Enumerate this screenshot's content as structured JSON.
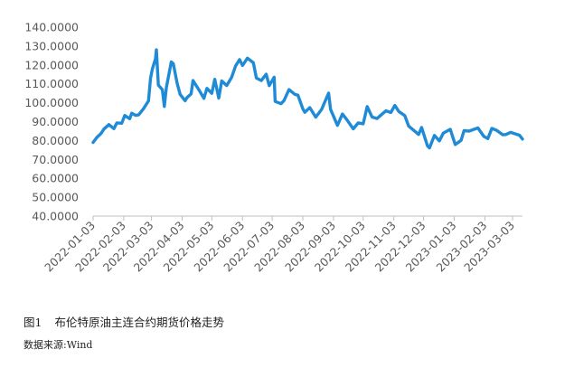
{
  "chart_data": {
    "type": "line",
    "series": [
      {
        "color": "#1f8bd6",
        "points": [
          [
            "2022-01-03",
            78.98
          ],
          [
            "2022-01-07",
            81.75
          ],
          [
            "2022-01-11",
            83.72
          ],
          [
            "2022-01-14",
            86.06
          ],
          [
            "2022-01-19",
            88.44
          ],
          [
            "2022-01-24",
            86.27
          ],
          [
            "2022-01-27",
            89.34
          ],
          [
            "2022-02-01",
            89.16
          ],
          [
            "2022-02-04",
            93.27
          ],
          [
            "2022-02-09",
            91.55
          ],
          [
            "2022-02-11",
            94.44
          ],
          [
            "2022-02-15",
            93.28
          ],
          [
            "2022-02-18",
            93.54
          ],
          [
            "2022-02-23",
            96.84
          ],
          [
            "2022-02-28",
            100.99
          ],
          [
            "2022-03-02",
            112.93
          ],
          [
            "2022-03-04",
            118.11
          ],
          [
            "2022-03-07",
            123.21
          ],
          [
            "2022-03-08",
            127.98
          ],
          [
            "2022-03-10",
            109.33
          ],
          [
            "2022-03-14",
            106.9
          ],
          [
            "2022-03-16",
            98.02
          ],
          [
            "2022-03-18",
            107.93
          ],
          [
            "2022-03-23",
            121.6
          ],
          [
            "2022-03-25",
            120.65
          ],
          [
            "2022-03-29",
            110.23
          ],
          [
            "2022-04-01",
            104.39
          ],
          [
            "2022-04-06",
            101.07
          ],
          [
            "2022-04-08",
            102.78
          ],
          [
            "2022-04-12",
            104.64
          ],
          [
            "2022-04-14",
            111.7
          ],
          [
            "2022-04-20",
            106.8
          ],
          [
            "2022-04-25",
            102.32
          ],
          [
            "2022-04-28",
            107.59
          ],
          [
            "2022-05-03",
            104.97
          ],
          [
            "2022-05-06",
            112.39
          ],
          [
            "2022-05-10",
            102.46
          ],
          [
            "2022-05-13",
            111.55
          ],
          [
            "2022-05-18",
            109.11
          ],
          [
            "2022-05-23",
            113.42
          ],
          [
            "2022-05-27",
            119.43
          ],
          [
            "2022-05-31",
            122.84
          ],
          [
            "2022-06-03",
            119.72
          ],
          [
            "2022-06-08",
            123.58
          ],
          [
            "2022-06-14",
            121.17
          ],
          [
            "2022-06-17",
            113.12
          ],
          [
            "2022-06-22",
            111.74
          ],
          [
            "2022-06-27",
            115.09
          ],
          [
            "2022-06-30",
            109.03
          ],
          [
            "2022-07-05",
            113.5
          ],
          [
            "2022-07-06",
            100.69
          ],
          [
            "2022-07-12",
            99.49
          ],
          [
            "2022-07-15",
            101.16
          ],
          [
            "2022-07-20",
            106.92
          ],
          [
            "2022-07-26",
            104.4
          ],
          [
            "2022-07-29",
            103.97
          ],
          [
            "2022-08-03",
            96.78
          ],
          [
            "2022-08-05",
            94.92
          ],
          [
            "2022-08-10",
            97.4
          ],
          [
            "2022-08-16",
            92.34
          ],
          [
            "2022-08-22",
            96.48
          ],
          [
            "2022-08-29",
            105.09
          ],
          [
            "2022-08-31",
            96.49
          ],
          [
            "2022-09-07",
            88.0
          ],
          [
            "2022-09-12",
            94.0
          ],
          [
            "2022-09-16",
            91.35
          ],
          [
            "2022-09-23",
            86.15
          ],
          [
            "2022-09-28",
            89.32
          ],
          [
            "2022-10-03",
            88.86
          ],
          [
            "2022-10-07",
            97.92
          ],
          [
            "2022-10-12",
            92.45
          ],
          [
            "2022-10-17",
            91.62
          ],
          [
            "2022-10-21",
            93.5
          ],
          [
            "2022-10-26",
            95.69
          ],
          [
            "2022-10-31",
            94.83
          ],
          [
            "2022-11-04",
            98.57
          ],
          [
            "2022-11-08",
            95.36
          ],
          [
            "2022-11-14",
            93.14
          ],
          [
            "2022-11-18",
            87.62
          ],
          [
            "2022-11-23",
            85.41
          ],
          [
            "2022-11-28",
            83.19
          ],
          [
            "2022-12-01",
            86.88
          ],
          [
            "2022-12-07",
            77.17
          ],
          [
            "2022-12-09",
            76.1
          ],
          [
            "2022-12-14",
            82.7
          ],
          [
            "2022-12-19",
            79.8
          ],
          [
            "2022-12-23",
            83.92
          ],
          [
            "2022-12-30",
            85.91
          ],
          [
            "2023-01-04",
            77.84
          ],
          [
            "2023-01-10",
            80.1
          ],
          [
            "2023-01-13",
            85.28
          ],
          [
            "2023-01-18",
            84.98
          ],
          [
            "2023-01-24",
            86.13
          ],
          [
            "2023-01-27",
            86.66
          ],
          [
            "2023-02-02",
            82.17
          ],
          [
            "2023-02-06",
            80.99
          ],
          [
            "2023-02-10",
            86.39
          ],
          [
            "2023-02-15",
            85.38
          ],
          [
            "2023-02-21",
            83.05
          ],
          [
            "2023-02-24",
            83.16
          ],
          [
            "2023-03-01",
            84.31
          ],
          [
            "2023-03-07",
            83.29
          ],
          [
            "2023-03-10",
            82.78
          ],
          [
            "2023-03-13",
            80.77
          ]
        ]
      }
    ],
    "ylim": [
      40,
      140
    ],
    "yticks": [
      "40.0000",
      "50.0000",
      "60.0000",
      "70.0000",
      "80.0000",
      "90.0000",
      "100.0000",
      "110.0000",
      "120.0000",
      "130.0000",
      "140.0000"
    ],
    "xticks": [
      "2022-01-03",
      "2022-02-03",
      "2022-03-03",
      "2022-04-03",
      "2022-05-03",
      "2022-06-03",
      "2022-07-03",
      "2022-08-03",
      "2022-09-03",
      "2022-10-03",
      "2022-11-03",
      "2022-12-03",
      "2023-01-03",
      "2023-02-03",
      "2023-03-03"
    ],
    "xrange": [
      "2022-01-03",
      "2023-03-13"
    ],
    "grid": false,
    "legend": "none"
  },
  "caption": {
    "figure_no": "图1",
    "title": "布伦特原油主连合约期货价格走势"
  },
  "source": "数据来源:Wind"
}
